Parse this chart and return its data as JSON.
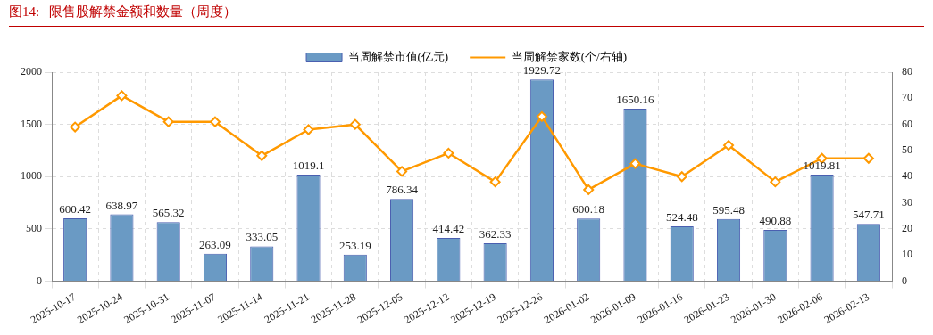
{
  "chart_data": {
    "type": "bar",
    "title": "图14:   限售股解禁金额和数量（周度）",
    "categories": [
      "2025-10-17",
      "2025-10-24",
      "2025-10-31",
      "2025-11-07",
      "2025-11-14",
      "2025-11-21",
      "2025-11-28",
      "2025-12-05",
      "2025-12-12",
      "2025-12-19",
      "2025-12-26",
      "2026-01-02",
      "2026-01-09",
      "2026-01-16",
      "2026-01-23",
      "2026-01-30",
      "2026-02-06",
      "2026-02-13"
    ],
    "series": [
      {
        "name": "当周解禁市值(亿元)",
        "color": "#6a9ac4",
        "values": [
          600.42,
          638.97,
          565.32,
          263.09,
          333.05,
          1019.1,
          253.19,
          786.34,
          414.42,
          362.33,
          1929.72,
          600.18,
          1650.16,
          524.48,
          595.48,
          490.88,
          1019.81,
          547.71
        ],
        "value_labels": [
          "600.42",
          "638.97",
          "565.32",
          "263.09",
          "333.05",
          "1019.1",
          "253.19",
          "786.34",
          "414.42",
          "362.33",
          "1929.72",
          "600.18",
          "1650.16",
          "524.48",
          "595.48",
          "490.88",
          "1019.81",
          "547.71"
        ]
      },
      {
        "name": "当周解禁家数(个/右轴)",
        "type": "line",
        "axis": "y2",
        "color": "#ff9900",
        "marker": "diamond",
        "values": [
          59,
          71,
          61,
          61,
          48,
          58,
          60,
          42,
          49,
          38,
          63,
          35,
          45,
          40,
          52,
          38,
          47,
          47
        ]
      }
    ],
    "ylim": [
      0,
      2000
    ],
    "yticks": [
      0,
      500,
      1000,
      1500,
      2000
    ],
    "y2lim": [
      0,
      80
    ],
    "y2ticks": [
      0,
      10,
      20,
      30,
      40,
      50,
      60,
      70,
      80
    ],
    "grid": true,
    "legend": "top"
  }
}
